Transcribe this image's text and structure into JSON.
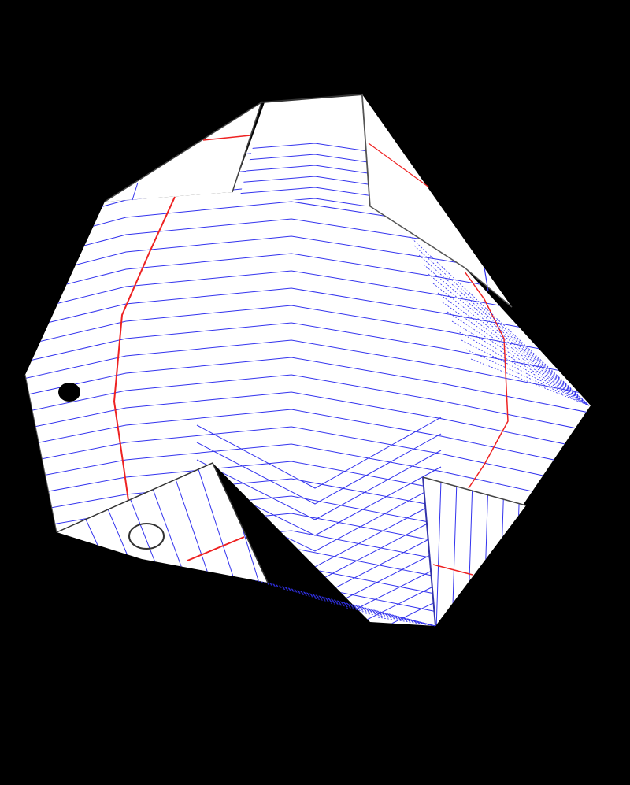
{
  "scene": {
    "subject": "folded-notebook-paper-polyhedron",
    "background_color": "#000000",
    "paper_color": "#ffffff",
    "rule_line_color": "#3333ee",
    "margin_line_color": "#ee2222",
    "edge_color": "#333333"
  }
}
